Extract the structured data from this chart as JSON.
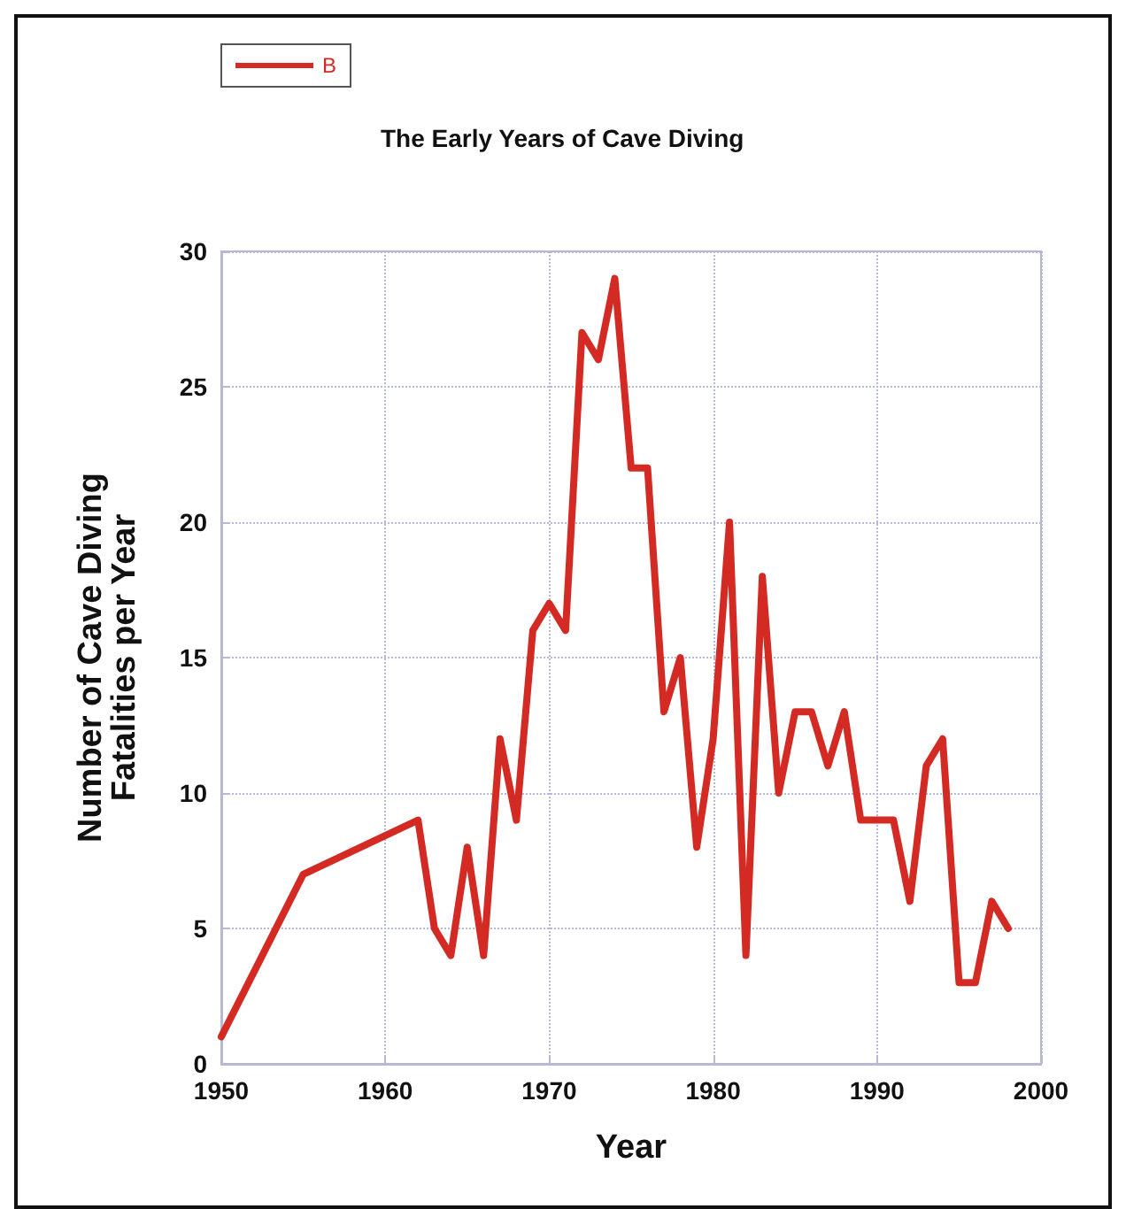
{
  "chart_data": {
    "type": "line",
    "title": "The Early Years of Cave Diving",
    "xlabel": "Year",
    "ylabel": "Number of Cave Diving\nFatalities per Year",
    "x": [
      1950,
      1955,
      1962,
      1963,
      1964,
      1965,
      1966,
      1967,
      1968,
      1969,
      1970,
      1971,
      1972,
      1973,
      1974,
      1975,
      1976,
      1977,
      1978,
      1979,
      1980,
      1981,
      1982,
      1983,
      1984,
      1985,
      1986,
      1987,
      1988,
      1989,
      1990,
      1991,
      1992,
      1993,
      1994,
      1995,
      1996,
      1997,
      1998
    ],
    "series": [
      {
        "name": "B",
        "color": "#d42a24",
        "values": [
          1,
          7,
          9,
          5,
          4,
          8,
          4,
          12,
          9,
          16,
          17,
          16,
          27,
          26,
          29,
          22,
          22,
          13,
          15,
          8,
          12,
          20,
          4,
          18,
          10,
          13,
          13,
          11,
          13,
          9,
          9,
          9,
          6,
          11,
          12,
          3,
          3,
          6,
          5
        ]
      }
    ],
    "xlim": [
      1950,
      2000
    ],
    "xticks": [
      1950,
      1960,
      1970,
      1980,
      1990,
      2000
    ],
    "ylim": [
      0,
      30
    ],
    "yticks": [
      0,
      5,
      10,
      15,
      20,
      25,
      30
    ],
    "grid": true,
    "legend": "top left",
    "marker": "none",
    "line_style": "solid"
  }
}
